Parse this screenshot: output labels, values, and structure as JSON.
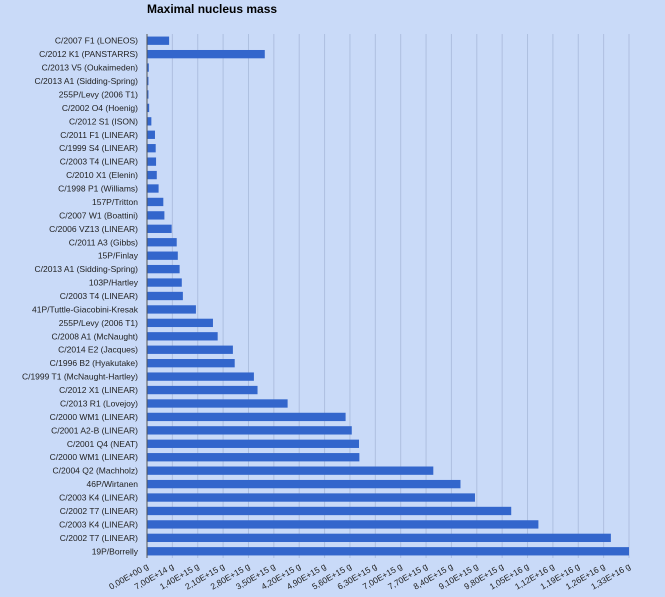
{
  "chart_data": {
    "type": "bar",
    "orientation": "horizontal",
    "title": "Maximal nucleus mass",
    "xlabel": "",
    "ylabel": "",
    "xlim": [
      0,
      13300000000000000
    ],
    "grid": true,
    "bar_color": "#3366cc",
    "background_color": "#c9daf8",
    "categories": [
      "C/2007 F1 (LONEOS)",
      "C/2012 K1 (PANSTARRS)",
      "C/2013 V5 (Oukaimeden)",
      "C/2013 A1 (Sidding-Spring)",
      "255P/Levy (2006 T1)",
      "C/2002 O4 (Hoenig)",
      "C/2012 S1 (ISON)",
      "C/2011 F1 (LINEAR)",
      "C/1999 S4 (LINEAR)",
      "C/2003 T4 (LINEAR)",
      "C/2010 X1 (Elenin)",
      "C/1998 P1 (Williams)",
      "157P/Tritton",
      "C/2007 W1 (Boattini)",
      "C/2006 VZ13 (LINEAR)",
      "C/2011 A3 (Gibbs)",
      "15P/Finlay",
      "C/2013 A1 (Sidding-Spring)",
      "103P/Hartley",
      "C/2003 T4 (LINEAR)",
      "41P/Tuttle-Giacobini-Kresak",
      "255P/Levy (2006 T1)",
      "C/2008 A1 (McNaught)",
      "C/2014 E2 (Jacques)",
      "C/1996 B2 (Hyakutake)",
      "C/1999 T1 (McNaught-Hartley)",
      "C/2012 X1 (LINEAR)",
      "C/2013 R1 (Lovejoy)",
      "C/2000 WM1 (LINEAR)",
      "C/2001 A2-B (LINEAR)",
      "C/2001 Q4 (NEAT)",
      "C/2000 WM1 (LINEAR)",
      "C/2004 Q2 (Machholz)",
      "46P/Wirtanen",
      "C/2003 K4 (LINEAR)",
      "C/2002 T7 (LINEAR)",
      "C/2003 K4 (LINEAR)",
      "C/2002 T7 (LINEAR)",
      "19P/Borrelly"
    ],
    "values": [
      610000000000000,
      3250000000000000,
      50000000000000,
      40000000000000,
      40000000000000,
      60000000000000,
      120000000000000,
      220000000000000,
      240000000000000,
      250000000000000,
      270000000000000,
      320000000000000,
      450000000000000,
      480000000000000,
      680000000000000,
      820000000000000,
      850000000000000,
      900000000000000,
      960000000000000,
      990000000000000,
      1350000000000000,
      1820000000000000,
      1950000000000000,
      2370000000000000,
      2420000000000000,
      2950000000000000,
      3050000000000000,
      3880000000000000,
      5480000000000000,
      5650000000000000,
      5850000000000000,
      5860000000000000,
      7900000000000000,
      8650000000000000,
      9050000000000000,
      10050000000000000,
      10800000000000000,
      12800000000000000,
      13300000000000000
    ],
    "ticks": [
      0,
      700000000000000,
      1400000000000000,
      2100000000000000,
      2800000000000000,
      3500000000000000,
      4200000000000000,
      4900000000000000,
      5600000000000000,
      6300000000000000,
      7000000000000000,
      7700000000000000,
      8400000000000000,
      9100000000000000,
      9800000000000000,
      10500000000000000,
      11200000000000000,
      11900000000000000,
      12600000000000000,
      13300000000000000
    ],
    "tick_labels": [
      "0,00E+00 g",
      "7,00E+14 g",
      "1,40E+15 g",
      "2,10E+15 g",
      "2,80E+15 g",
      "3,50E+15 g",
      "4,20E+15 g",
      "4,90E+15 g",
      "5,60E+15 g",
      "6,30E+15 g",
      "7,00E+15 g",
      "7,70E+15 g",
      "8,40E+15 g",
      "9,10E+15 g",
      "9,80E+15 g",
      "1,05E+16 g",
      "1,12E+16 g",
      "1,19E+16 g",
      "1,26E+16 g",
      "1,33E+16 g"
    ]
  }
}
